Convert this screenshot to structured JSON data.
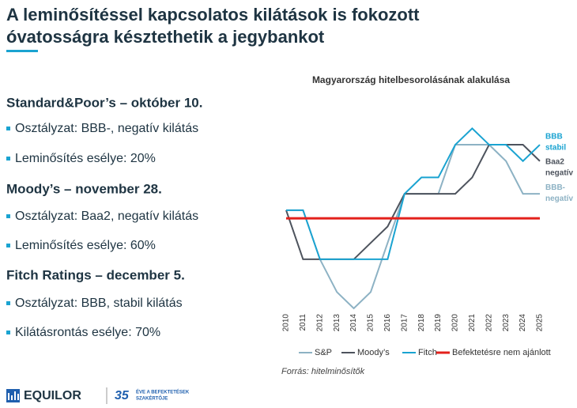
{
  "header": {
    "title": [
      "A leminősítéssel kapcsolatos kilátások is fokozott",
      "óvatosságra késztethetik a jegybankot"
    ]
  },
  "sections": [
    {
      "heading": "Standard&Poor’s – október 10.",
      "bullets": [
        "Osztályzat: BBB-, negatív kilátás",
        "Leminősítés esélye: 20%"
      ]
    },
    {
      "heading": "Moody’s – november 28.",
      "bullets": [
        "Osztályzat: Baa2, negatív kilátás",
        "Leminősítés esélye: 60%"
      ]
    },
    {
      "heading": "Fitch Ratings – december 5.",
      "bullets": [
        "Osztályzat: BBB, stabil kilátás",
        "Kilátásrontás esélye: 70%"
      ]
    }
  ],
  "chart_data": {
    "type": "line",
    "title": "Magyarország hitelbesorolásának alakulása",
    "x": [
      2010,
      2011,
      2012,
      2013,
      2014,
      2015,
      2016,
      2017,
      2018,
      2019,
      2020,
      2021,
      2022,
      2023,
      2024,
      2025
    ],
    "xlim": [
      2010,
      2025
    ],
    "xticks": [
      2010,
      2011,
      2012,
      2013,
      2014,
      2015,
      2016,
      2017,
      2018,
      2019,
      2020,
      2021,
      2022,
      2023,
      2024,
      2025
    ],
    "ylim": [
      0,
      11.5
    ],
    "series": [
      {
        "name": "S&P",
        "color": "#8db2c4",
        "values": [
          6,
          6,
          3,
          1,
          0,
          1,
          4,
          7,
          7,
          7,
          10,
          10,
          10,
          9,
          7,
          7
        ],
        "end_label": [
          "BBB-",
          "negatív"
        ]
      },
      {
        "name": "Moody’s",
        "color": "#4d535d",
        "values": [
          6,
          3,
          3,
          3,
          3,
          4,
          5,
          7,
          7,
          7,
          7,
          8,
          10,
          10,
          10,
          9
        ],
        "end_label": [
          "Baa2",
          "negatív"
        ]
      },
      {
        "name": "Fitch",
        "color": "#1aa3d1",
        "values": [
          6,
          6,
          3,
          3,
          3,
          3,
          3,
          7,
          8,
          8,
          10,
          11,
          10,
          10,
          9,
          10
        ],
        "end_label": [
          "BBB",
          "stabil"
        ]
      },
      {
        "name": "Befektetésre nem ajánlott",
        "color": "#e3201b",
        "values": [
          5.5,
          5.5,
          5.5,
          5.5,
          5.5,
          5.5,
          5.5,
          5.5,
          5.5,
          5.5,
          5.5,
          5.5,
          5.5,
          5.5,
          5.5,
          5.5
        ]
      }
    ],
    "source": "Forrás: hitelminősítők"
  },
  "footer": {
    "logo": "EQUILOR",
    "years": "35",
    "tagline": [
      "ÉVE A BEFEKTETÉSEK",
      "SZAKÉRTŐJE"
    ]
  }
}
